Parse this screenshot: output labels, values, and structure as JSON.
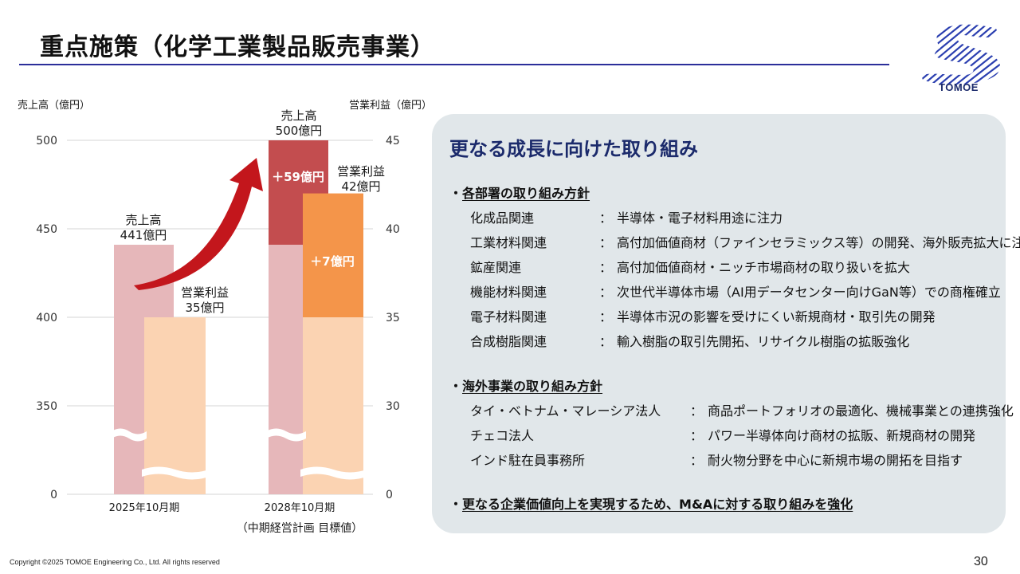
{
  "header": {
    "title": "重点施策（化学工業製品販売事業）"
  },
  "logo": {
    "text": "TOMOE"
  },
  "chart_data": {
    "type": "bar",
    "left_axis": {
      "label": "売上高（億円）",
      "ticks": [
        "500",
        "450",
        "400",
        "350",
        "0"
      ]
    },
    "right_axis": {
      "label": "営業利益（億円）",
      "ticks": [
        "45",
        "40",
        "35",
        "30",
        "0"
      ]
    },
    "categories": [
      "2025年10月期",
      "2028年10月期"
    ],
    "category_note": "（中期経営計画 目標値）",
    "series": [
      {
        "name": "売上高",
        "values": [
          441,
          500
        ],
        "axis": "left"
      },
      {
        "name": "営業利益",
        "values": [
          35,
          42
        ],
        "axis": "right"
      }
    ],
    "labels": {
      "sales_2025": [
        "売上高",
        "441億円"
      ],
      "profit_2025": [
        "営業利益",
        "35億円"
      ],
      "sales_2028": [
        "売上高",
        "500億円"
      ],
      "profit_2028": [
        "営業利益",
        "42億円"
      ],
      "sales_increase": "＋59億円",
      "profit_increase": "＋7億円"
    },
    "colors": {
      "sales_base": "#e6b7ba",
      "sales_increase": "#c34d4f",
      "profit_base": "#fbd3b2",
      "profit_increase": "#f4954a",
      "arrow": "#c3161c"
    }
  },
  "panel": {
    "title": "更なる成長に向けた取り組み",
    "sections": [
      {
        "bullet": "・",
        "heading": "各部署の取り組み方針",
        "items": [
          {
            "key": "化成品関連",
            "sep": "：",
            "value": "半導体・電子材料用途に注力"
          },
          {
            "key": "工業材料関連",
            "sep": "：",
            "value": "高付加価値商材（ファインセラミックス等）の開発、海外販売拡大に注力"
          },
          {
            "key": "鉱産関連",
            "sep": "：",
            "value": "高付加価値商材・ニッチ市場商材の取り扱いを拡大"
          },
          {
            "key": "機能材料関連",
            "sep": "：",
            "value": "次世代半導体市場（AI用データセンター向けGaN等）での商権確立"
          },
          {
            "key": "電子材料関連",
            "sep": "：",
            "value": "半導体市況の影響を受けにくい新規商材・取引先の開発"
          },
          {
            "key": "合成樹脂関連",
            "sep": "：",
            "value": "輸入樹脂の取引先開拓、リサイクル樹脂の拡販強化"
          }
        ]
      },
      {
        "bullet": "・",
        "heading": "海外事業の取り組み方針",
        "items": [
          {
            "key": "タイ・ベトナム・マレーシア法人",
            "sep": "：",
            "value": "商品ポートフォリオの最適化、機械事業との連携強化"
          },
          {
            "key": "チェコ法人",
            "sep": "：",
            "value": "パワー半導体向け商材の拡販、新規商材の開発"
          },
          {
            "key": "インド駐在員事務所",
            "sep": "：",
            "value": "耐火物分野を中心に新規市場の開拓を目指す"
          }
        ]
      },
      {
        "bullet": "・",
        "heading": "更なる企業価値向上を実現するため、M&Aに対する取り組みを強化",
        "items": []
      }
    ]
  },
  "footer": {
    "copyright": "Copyright ©2025 TOMOE Engineering Co., Ltd. All rights reserved",
    "page": "30"
  }
}
